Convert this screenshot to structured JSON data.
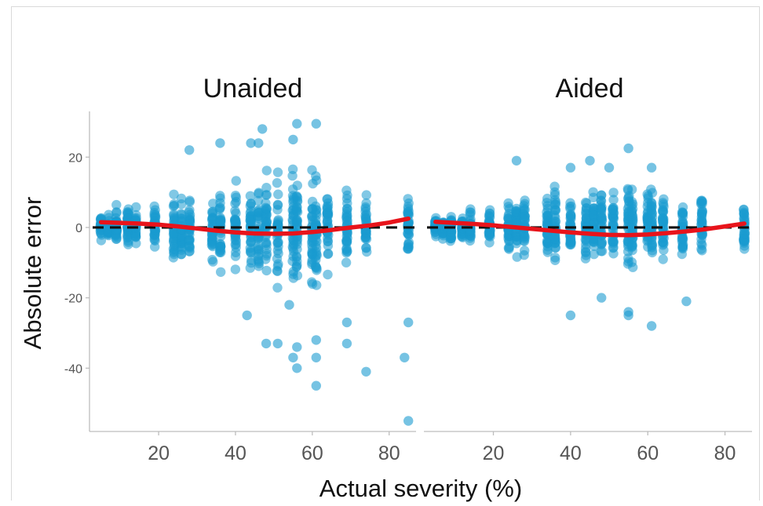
{
  "chart_data": {
    "type": "scatter",
    "xlabel": "Actual severity (%)",
    "ylabel": "Absolute error",
    "xlim": [
      2,
      87
    ],
    "ylim": [
      -58,
      33
    ],
    "xticks": [
      20,
      40,
      60,
      80
    ],
    "yticks": [
      20,
      0,
      -20,
      -40
    ],
    "point_color": "#1a9bd0",
    "trend_color": "#e8141b",
    "reference_line": 0,
    "grid": false,
    "panels": [
      {
        "title": "Unaided",
        "x_levels": [
          5,
          7,
          9,
          12,
          14,
          19,
          24,
          26,
          28,
          34,
          36,
          40,
          44,
          46,
          48,
          51,
          55,
          56,
          60,
          61,
          64,
          69,
          74,
          85
        ],
        "spread": [
          6,
          6,
          8,
          8,
          7,
          10,
          12,
          13,
          14,
          15,
          16,
          15,
          16,
          18,
          20,
          22,
          24,
          22,
          22,
          20,
          16,
          14,
          12,
          11
        ],
        "outliers": [
          [
            47,
            28
          ],
          [
            56,
            29.5
          ],
          [
            61,
            29.5
          ],
          [
            44,
            24
          ],
          [
            46,
            24
          ],
          [
            36,
            24
          ],
          [
            28,
            22
          ],
          [
            55,
            25
          ],
          [
            56,
            -34
          ],
          [
            55,
            -37
          ],
          [
            56,
            -40
          ],
          [
            61,
            -32
          ],
          [
            61,
            -37
          ],
          [
            61,
            -45
          ],
          [
            69,
            -27
          ],
          [
            69,
            -33
          ],
          [
            74,
            -41
          ],
          [
            85,
            -27
          ],
          [
            84,
            -37
          ],
          [
            85,
            -55
          ],
          [
            48,
            -33
          ],
          [
            51,
            -33
          ],
          [
            43,
            -25
          ],
          [
            54,
            -22
          ]
        ],
        "trend": [
          [
            5,
            1.5
          ],
          [
            10,
            1.3
          ],
          [
            15,
            1.1
          ],
          [
            20,
            0.8
          ],
          [
            25,
            0.3
          ],
          [
            30,
            -0.3
          ],
          [
            35,
            -0.9
          ],
          [
            40,
            -1.4
          ],
          [
            45,
            -1.7
          ],
          [
            50,
            -1.8
          ],
          [
            55,
            -1.7
          ],
          [
            60,
            -1.3
          ],
          [
            65,
            -0.7
          ],
          [
            70,
            0.0
          ],
          [
            75,
            0.6
          ],
          [
            80,
            1.4
          ],
          [
            85,
            2.5
          ]
        ]
      },
      {
        "title": "Aided",
        "x_levels": [
          5,
          7,
          9,
          12,
          14,
          19,
          24,
          26,
          28,
          34,
          36,
          40,
          44,
          46,
          48,
          51,
          55,
          56,
          60,
          61,
          64,
          69,
          74,
          85
        ],
        "spread": [
          4,
          4,
          5,
          6,
          6,
          7,
          9,
          10,
          10,
          12,
          13,
          12,
          12,
          13,
          14,
          14,
          15,
          14,
          13,
          13,
          12,
          11,
          11,
          8
        ],
        "outliers": [
          [
            55,
            22.5
          ],
          [
            26,
            19
          ],
          [
            45,
            19
          ],
          [
            61,
            17
          ],
          [
            40,
            17
          ],
          [
            50,
            17
          ],
          [
            40,
            -25
          ],
          [
            55,
            -24
          ],
          [
            55,
            -25
          ],
          [
            61,
            -28
          ],
          [
            70,
            -21
          ],
          [
            48,
            -20
          ]
        ],
        "trend": [
          [
            5,
            1.6
          ],
          [
            10,
            1.3
          ],
          [
            15,
            1.0
          ],
          [
            20,
            0.6
          ],
          [
            25,
            0.1
          ],
          [
            30,
            -0.4
          ],
          [
            35,
            -0.9
          ],
          [
            40,
            -1.4
          ],
          [
            45,
            -1.8
          ],
          [
            50,
            -2.1
          ],
          [
            55,
            -2.2
          ],
          [
            60,
            -2.0
          ],
          [
            65,
            -1.6
          ],
          [
            70,
            -1.1
          ],
          [
            75,
            -0.5
          ],
          [
            80,
            0.3
          ],
          [
            85,
            1.1
          ]
        ]
      }
    ]
  }
}
